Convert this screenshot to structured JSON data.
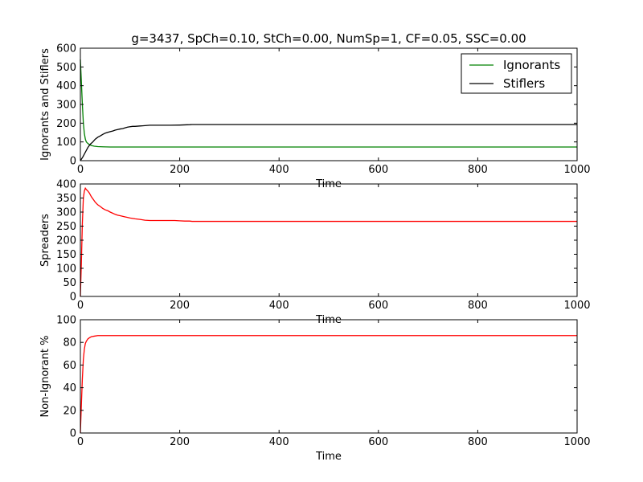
{
  "title": "g=3437, SpCh=0.10, StCh=0.00, NumSp=1, CF=0.05, SSC=0.00",
  "chart_data": [
    {
      "type": "line",
      "xlabel": "Time",
      "ylabel": "Ignorants and Stiflers",
      "xlim": [
        0,
        1000
      ],
      "ylim": [
        0,
        600
      ],
      "xticks": [
        "0",
        "200",
        "400",
        "600",
        "800",
        "1000"
      ],
      "yticks": [
        "0",
        "100",
        "200",
        "300",
        "400",
        "500",
        "600"
      ],
      "legend": {
        "placement": "top-right"
      },
      "series": [
        {
          "name": "Ignorants",
          "color": "#008000",
          "x": [
            0,
            2,
            4,
            6,
            8,
            10,
            12,
            15,
            18,
            22,
            28,
            35,
            45,
            60,
            100,
            200,
            400,
            1000
          ],
          "y": [
            540,
            420,
            300,
            200,
            145,
            115,
            100,
            92,
            86,
            81,
            77,
            75,
            74,
            73,
            73,
            73,
            73,
            73
          ]
        },
        {
          "name": "Stiflers",
          "color": "#000000",
          "x": [
            0,
            5,
            10,
            15,
            20,
            25,
            30,
            35,
            40,
            45,
            50,
            55,
            60,
            65,
            70,
            75,
            80,
            85,
            90,
            95,
            100,
            105,
            110,
            115,
            120,
            125,
            130,
            135,
            140,
            160,
            180,
            200,
            210,
            220,
            225,
            230,
            250,
            300,
            400,
            600,
            800,
            1000
          ],
          "y": [
            0,
            20,
            45,
            70,
            88,
            100,
            115,
            125,
            132,
            140,
            147,
            151,
            155,
            158,
            163,
            166,
            169,
            171,
            175,
            179,
            181,
            183,
            183,
            184,
            185,
            186,
            187,
            188,
            189,
            189,
            189,
            190,
            191,
            192,
            193,
            193,
            193,
            193,
            193,
            193,
            193,
            193
          ]
        }
      ]
    },
    {
      "type": "line",
      "xlabel": "Time",
      "ylabel": "Spreaders",
      "xlim": [
        0,
        1000
      ],
      "ylim": [
        0,
        400
      ],
      "xticks": [
        "0",
        "200",
        "400",
        "600",
        "800",
        "1000"
      ],
      "yticks": [
        "0",
        "50",
        "100",
        "150",
        "200",
        "250",
        "300",
        "350",
        "400"
      ],
      "series": [
        {
          "color": "#ff0000",
          "x": [
            0,
            2,
            4,
            6,
            8,
            10,
            12,
            15,
            18,
            22,
            26,
            30,
            35,
            40,
            45,
            50,
            55,
            60,
            65,
            70,
            75,
            80,
            85,
            90,
            95,
            100,
            110,
            120,
            130,
            140,
            150,
            170,
            190,
            200,
            210,
            220,
            225,
            230,
            300,
            500,
            1000
          ],
          "y": [
            0,
            120,
            260,
            350,
            375,
            385,
            380,
            375,
            368,
            355,
            345,
            335,
            326,
            320,
            313,
            308,
            305,
            300,
            296,
            292,
            289,
            287,
            285,
            283,
            281,
            279,
            276,
            274,
            271,
            270,
            270,
            270,
            270,
            269,
            268,
            268,
            267,
            267,
            267,
            267,
            267
          ]
        }
      ]
    },
    {
      "type": "line",
      "xlabel": "Time",
      "ylabel": "Non-Ignorant %",
      "xlim": [
        0,
        1000
      ],
      "ylim": [
        0,
        100
      ],
      "xticks": [
        "0",
        "200",
        "400",
        "600",
        "800",
        "1000"
      ],
      "yticks": [
        "0",
        "20",
        "40",
        "60",
        "80",
        "100"
      ],
      "series": [
        {
          "color": "#ff0000",
          "x": [
            0,
            2,
            4,
            6,
            8,
            10,
            12,
            15,
            18,
            22,
            28,
            35,
            45,
            60,
            100,
            1000
          ],
          "y": [
            0,
            25,
            48,
            65,
            74,
            79,
            81,
            83,
            84,
            85,
            85.5,
            86,
            86,
            86,
            86,
            86
          ]
        }
      ]
    }
  ]
}
